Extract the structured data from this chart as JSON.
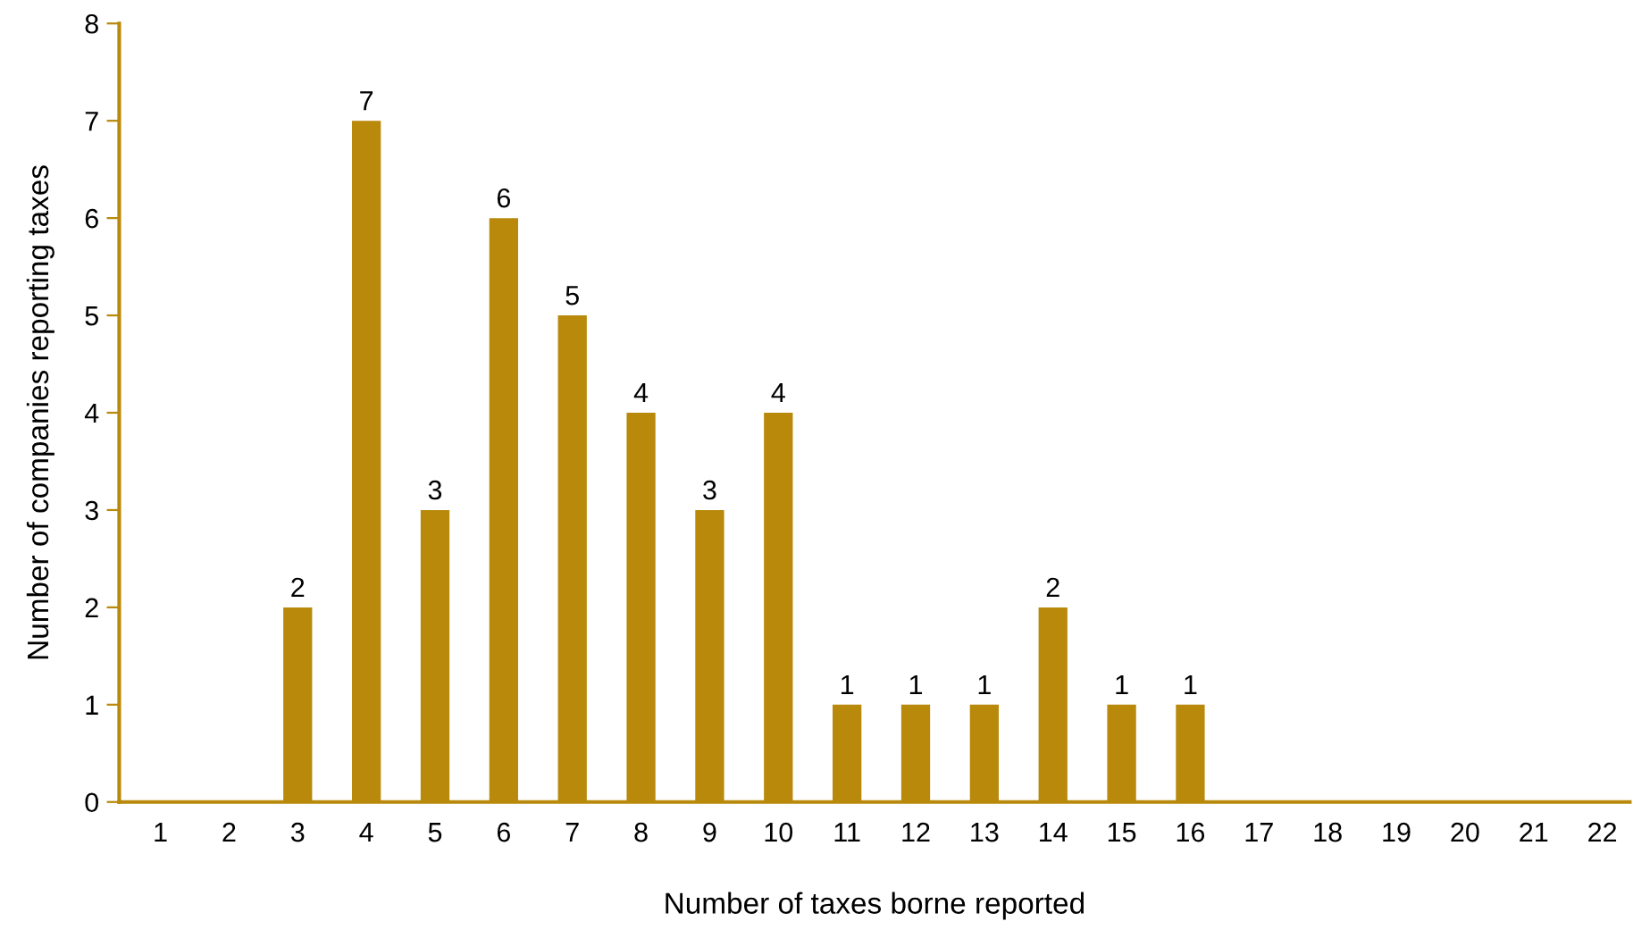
{
  "chart_data": {
    "type": "bar",
    "xlabel": "Number of taxes borne reported",
    "ylabel": "Number of companies reporting taxes",
    "categories": [
      "1",
      "2",
      "3",
      "4",
      "5",
      "6",
      "7",
      "8",
      "9",
      "10",
      "11",
      "12",
      "13",
      "14",
      "15",
      "16",
      "17",
      "18",
      "19",
      "20",
      "21",
      "22"
    ],
    "values": [
      0,
      0,
      2,
      7,
      3,
      6,
      5,
      4,
      3,
      4,
      1,
      1,
      1,
      2,
      1,
      1,
      0,
      0,
      0,
      0,
      0,
      0
    ],
    "value_labels": [
      null,
      null,
      "2",
      "7",
      "3",
      "6",
      "5",
      "4",
      "3",
      "4",
      "1",
      "1",
      "1",
      "2",
      "1",
      "1",
      null,
      null,
      null,
      null,
      null,
      null
    ],
    "color": "#b8890b",
    "ylim": [
      0,
      8
    ],
    "yticks": [
      0,
      1,
      2,
      3,
      4,
      5,
      6,
      7,
      8
    ],
    "grid": false
  }
}
